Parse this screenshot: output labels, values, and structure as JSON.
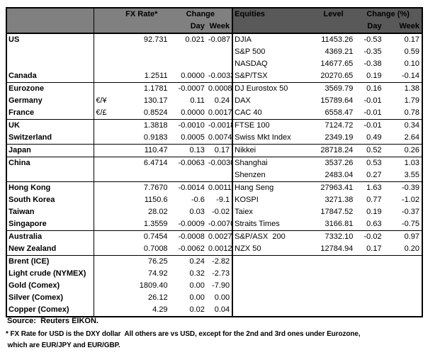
{
  "header": {
    "fx": {
      "title": "FX Rate*",
      "change": "Change",
      "day": "Day",
      "week": "Week"
    },
    "eq": {
      "title": "Equities",
      "level": "Level",
      "change": "Change (%)",
      "day": "Day",
      "week": "Week"
    }
  },
  "rows": [
    {
      "label": "US",
      "symbol": "",
      "rate": "92.731",
      "day": "0.021",
      "week": "-0.087",
      "eq": "DJIA",
      "level": "11453.26",
      "eday": "-0.53",
      "eweek": "0.17",
      "top": false,
      "indent": false
    },
    {
      "label": "",
      "symbol": "",
      "rate": "",
      "day": "",
      "week": "",
      "eq": "S&P 500",
      "level": "4369.21",
      "eday": "-0.35",
      "eweek": "0.59",
      "top": false,
      "indent": false
    },
    {
      "label": "",
      "symbol": "",
      "rate": "",
      "day": "",
      "week": "",
      "eq": "NASDAQ",
      "level": "14677.65",
      "eday": "-0.38",
      "eweek": "0.10",
      "top": false,
      "indent": false
    },
    {
      "label": "Canada",
      "symbol": "",
      "rate": "1.2511",
      "day": "0.0000",
      "week": "-0.0033",
      "eq": "S&P/TSX",
      "level": "20270.65",
      "eday": "0.19",
      "eweek": "-0.14",
      "top": false,
      "indent": false
    },
    {
      "label": "Eurozone",
      "symbol": "",
      "rate": "1.1781",
      "day": "-0.0007",
      "week": "0.0008",
      "eq": "DJ Eurostox 50",
      "level": "3569.79",
      "eday": "0.16",
      "eweek": "1.38",
      "top": true,
      "indent": false
    },
    {
      "label": "Germany",
      "symbol": "€/¥",
      "rate": "130.17",
      "day": "0.11",
      "week": "0.24",
      "eq": "DAX",
      "level": "15789.64",
      "eday": "-0.01",
      "eweek": "1.79",
      "top": false,
      "indent": true
    },
    {
      "label": "France",
      "symbol": "€/£",
      "rate": "0.8524",
      "day": "0.0000",
      "week": "0.0017",
      "eq": "CAC 40",
      "level": "6558.47",
      "eday": "-0.01",
      "eweek": "0.78",
      "top": false,
      "indent": true
    },
    {
      "label": "UK",
      "symbol": "",
      "rate": "1.3818",
      "day": "-0.0010",
      "week": "-0.0018",
      "eq": "FTSE 100",
      "level": "7124.72",
      "eday": "-0.01",
      "eweek": "0.34",
      "top": true,
      "indent": false
    },
    {
      "label": "Switzerland",
      "symbol": "",
      "rate": "0.9183",
      "day": "0.0005",
      "week": "0.0074",
      "eq": "Swiss Mkt Index",
      "level": "2349.19",
      "eday": "0.49",
      "eweek": "2.64",
      "top": false,
      "indent": false
    },
    {
      "label": "Japan",
      "symbol": "",
      "rate": "110.47",
      "day": "0.13",
      "week": "0.17",
      "eq": "Nikkei",
      "level": "28718.24",
      "eday": "0.52",
      "eweek": "0.26",
      "top": true,
      "indent": false
    },
    {
      "label": "China",
      "symbol": "",
      "rate": "6.4714",
      "day": "-0.0063",
      "week": "-0.0030",
      "eq": "Shanghai",
      "level": "3537.26",
      "eday": "0.53",
      "eweek": "1.03",
      "top": true,
      "indent": false
    },
    {
      "label": "",
      "symbol": "",
      "rate": "",
      "day": "",
      "week": "",
      "eq": "Shenzen",
      "level": "2483.04",
      "eday": "0.27",
      "eweek": "3.55",
      "top": false,
      "indent": false
    },
    {
      "label": "Hong Kong",
      "symbol": "",
      "rate": "7.7670",
      "day": "-0.0014",
      "week": "0.0011",
      "eq": "Hang Seng",
      "level": "27963.41",
      "eday": "1.63",
      "eweek": "-0.39",
      "top": true,
      "indent": false
    },
    {
      "label": "South Korea",
      "symbol": "",
      "rate": "1150.6",
      "day": "-0.6",
      "week": "-9.1",
      "eq": "KOSPI",
      "level": "3271.38",
      "eday": "0.77",
      "eweek": "-1.02",
      "top": false,
      "indent": false
    },
    {
      "label": "Taiwan",
      "symbol": "",
      "rate": "28.02",
      "day": "0.03",
      "week": "-0.02",
      "eq": "Taiex",
      "level": "17847.52",
      "eday": "0.19",
      "eweek": "-0.37",
      "top": false,
      "indent": false
    },
    {
      "label": "Singapore",
      "symbol": "",
      "rate": "1.3559",
      "day": "-0.0009",
      "week": "-0.0070",
      "eq": "Straits Times",
      "level": "3166.81",
      "eday": "0.63",
      "eweek": "-0.75",
      "top": false,
      "indent": false
    },
    {
      "label": "Australia",
      "symbol": "",
      "rate": "0.7454",
      "day": "-0.0008",
      "week": "0.0027",
      "eq": "S&P/ASX  200",
      "level": "7332.10",
      "eday": "-0.02",
      "eweek": "0.97",
      "top": true,
      "indent": false
    },
    {
      "label": "New Zealand",
      "symbol": "",
      "rate": "0.7008",
      "day": "-0.0062",
      "week": "0.0012",
      "eq": "NZX 50",
      "level": "12784.94",
      "eday": "0.17",
      "eweek": "0.20",
      "top": false,
      "indent": false
    },
    {
      "label": "Brent (ICE)",
      "symbol": "",
      "rate": "76.25",
      "day": "0.24",
      "week": "-2.82",
      "eq": "",
      "level": "",
      "eday": "",
      "eweek": "",
      "top": true,
      "indent": false
    },
    {
      "label": "Light crude (NYMEX)",
      "symbol": "",
      "rate": "74.92",
      "day": "0.32",
      "week": "-2.73",
      "eq": "",
      "level": "",
      "eday": "",
      "eweek": "",
      "top": false,
      "indent": false
    },
    {
      "label": "Gold (Comex)",
      "symbol": "",
      "rate": "1809.40",
      "day": "0.00",
      "week": "-7.90",
      "eq": "",
      "level": "",
      "eday": "",
      "eweek": "",
      "top": false,
      "indent": false
    },
    {
      "label": "Silver (Comex)",
      "symbol": "",
      "rate": "26.12",
      "day": "0.00",
      "week": "0.00",
      "eq": "",
      "level": "",
      "eday": "",
      "eweek": "",
      "top": false,
      "indent": false
    },
    {
      "label": "Copper (Comex)",
      "symbol": "",
      "rate": "4.29",
      "day": "0.02",
      "week": "0.04",
      "eq": "",
      "level": "",
      "eday": "",
      "eweek": "",
      "top": false,
      "indent": false
    }
  ],
  "footer": {
    "source": "Source:  Reuters EIKON.",
    "note_line1": "* FX Rate for USD is the DXY dollar  All others are vs USD, except for the 2nd and 3rd ones under Eurozone,",
    "note_line2": " which are EUR/JPY and EUR/GBP."
  },
  "colors": {
    "fx_header_bg": "#808080",
    "equities_header_bg": "#595959",
    "header_text": "#ffffff",
    "border": "#000000",
    "body_text": "#000000"
  }
}
